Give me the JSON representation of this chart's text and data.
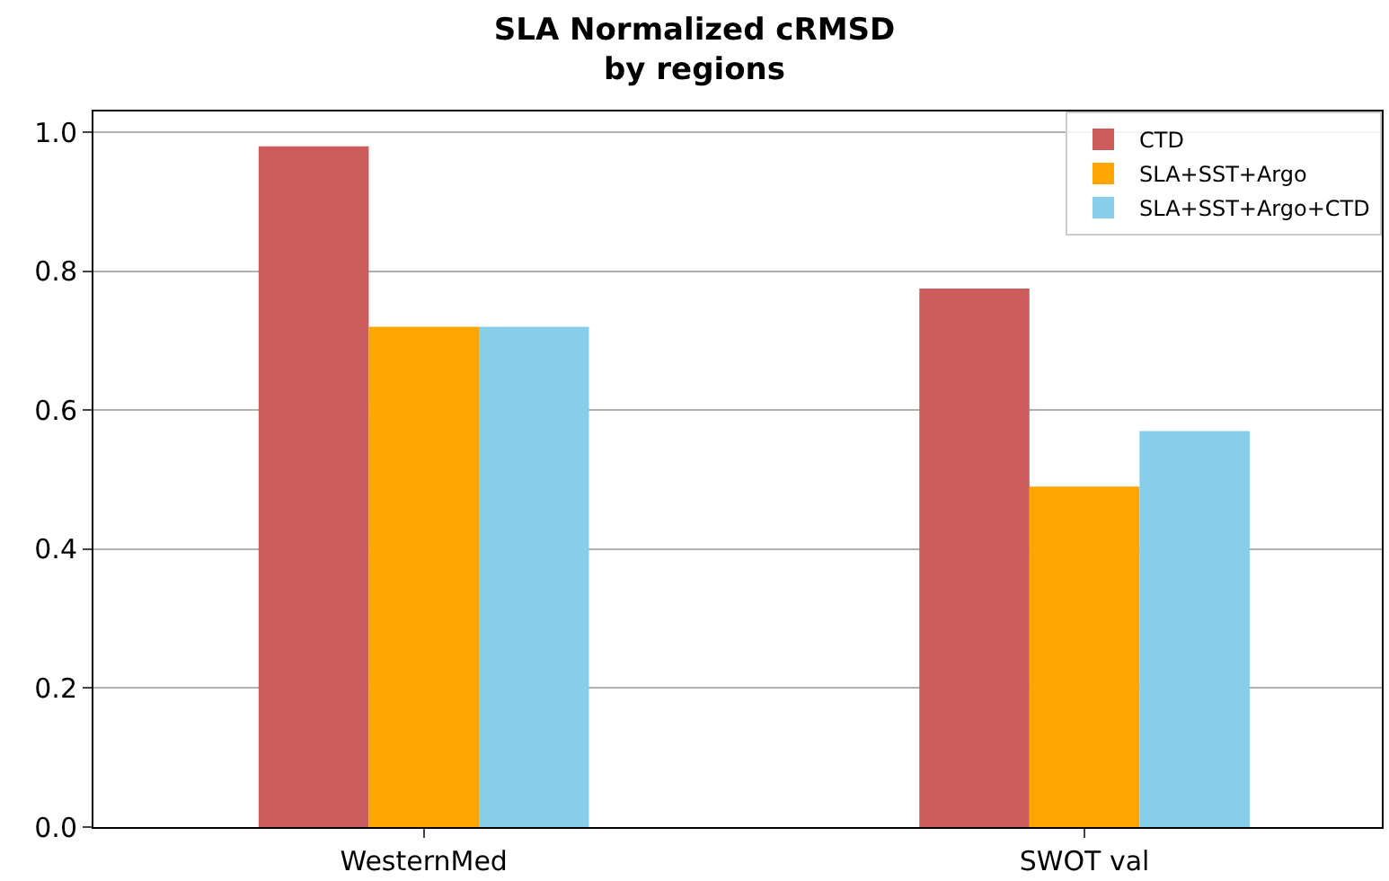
{
  "chart_data": {
    "type": "bar",
    "title": "SLA Normalized cRMSD\nby regions",
    "categories": [
      "WesternMed",
      "SWOT val"
    ],
    "series": [
      {
        "name": "CTD",
        "color": "#cd5c5c",
        "values": [
          0.98,
          0.775
        ]
      },
      {
        "name": "SLA+SST+Argo",
        "color": "#ffa500",
        "values": [
          0.72,
          0.49
        ]
      },
      {
        "name": "SLA+SST+Argo+CTD",
        "color": "#87ceeb",
        "values": [
          0.72,
          0.57
        ]
      }
    ],
    "ylim": [
      0,
      1.03
    ],
    "yticks": [
      {
        "value": 0,
        "label": "0.0"
      },
      {
        "value": 0.2,
        "label": "0.2"
      },
      {
        "value": 0.4,
        "label": "0.4"
      },
      {
        "value": 0.6,
        "label": "0.6"
      },
      {
        "value": 0.8,
        "label": "0.8"
      },
      {
        "value": 1,
        "label": "1.0"
      }
    ],
    "grid": "y",
    "legend": "top right"
  }
}
